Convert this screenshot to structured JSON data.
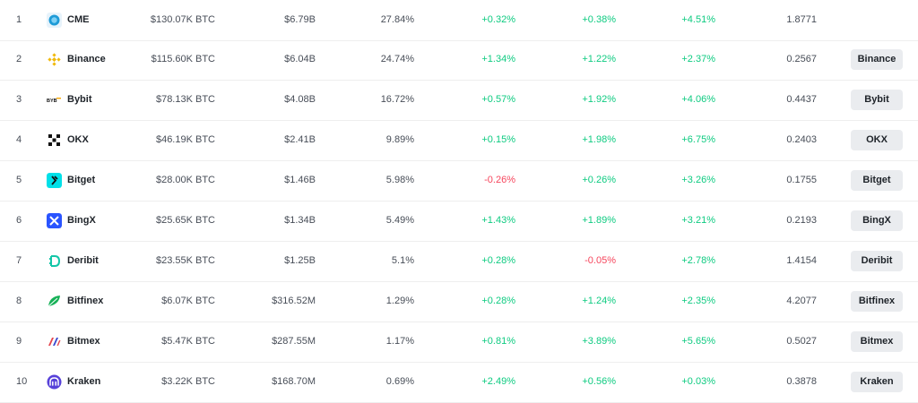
{
  "rows": [
    {
      "rank": "1",
      "name": "CME",
      "logo": "cme-logo-icon",
      "oi_btc": "$130.07K BTC",
      "oi_usd": "$6.79B",
      "share": "27.84%",
      "change1": "+0.32%",
      "change2": "+0.38%",
      "change3": "+4.51%",
      "ratio": "1.8771",
      "button": null
    },
    {
      "rank": "2",
      "name": "Binance",
      "logo": "binance-logo-icon",
      "oi_btc": "$115.60K BTC",
      "oi_usd": "$6.04B",
      "share": "24.74%",
      "change1": "+1.34%",
      "change2": "+1.22%",
      "change3": "+2.37%",
      "ratio": "0.2567",
      "button": "Binance"
    },
    {
      "rank": "3",
      "name": "Bybit",
      "logo": "bybit-logo-icon",
      "oi_btc": "$78.13K BTC",
      "oi_usd": "$4.08B",
      "share": "16.72%",
      "change1": "+0.57%",
      "change2": "+1.92%",
      "change3": "+4.06%",
      "ratio": "0.4437",
      "button": "Bybit"
    },
    {
      "rank": "4",
      "name": "OKX",
      "logo": "okx-logo-icon",
      "oi_btc": "$46.19K BTC",
      "oi_usd": "$2.41B",
      "share": "9.89%",
      "change1": "+0.15%",
      "change2": "+1.98%",
      "change3": "+6.75%",
      "ratio": "0.2403",
      "button": "OKX"
    },
    {
      "rank": "5",
      "name": "Bitget",
      "logo": "bitget-logo-icon",
      "oi_btc": "$28.00K BTC",
      "oi_usd": "$1.46B",
      "share": "5.98%",
      "change1": "-0.26%",
      "change2": "+0.26%",
      "change3": "+3.26%",
      "ratio": "0.1755",
      "button": "Bitget"
    },
    {
      "rank": "6",
      "name": "BingX",
      "logo": "bingx-logo-icon",
      "oi_btc": "$25.65K BTC",
      "oi_usd": "$1.34B",
      "share": "5.49%",
      "change1": "+1.43%",
      "change2": "+1.89%",
      "change3": "+3.21%",
      "ratio": "0.2193",
      "button": "BingX"
    },
    {
      "rank": "7",
      "name": "Deribit",
      "logo": "deribit-logo-icon",
      "oi_btc": "$23.55K BTC",
      "oi_usd": "$1.25B",
      "share": "5.1%",
      "change1": "+0.28%",
      "change2": "-0.05%",
      "change3": "+2.78%",
      "ratio": "1.4154",
      "button": "Deribit"
    },
    {
      "rank": "8",
      "name": "Bitfinex",
      "logo": "bitfinex-logo-icon",
      "oi_btc": "$6.07K BTC",
      "oi_usd": "$316.52M",
      "share": "1.29%",
      "change1": "+0.28%",
      "change2": "+1.24%",
      "change3": "+2.35%",
      "ratio": "4.2077",
      "button": "Bitfinex"
    },
    {
      "rank": "9",
      "name": "Bitmex",
      "logo": "bitmex-logo-icon",
      "oi_btc": "$5.47K BTC",
      "oi_usd": "$287.55M",
      "share": "1.17%",
      "change1": "+0.81%",
      "change2": "+3.89%",
      "change3": "+5.65%",
      "ratio": "0.5027",
      "button": "Bitmex"
    },
    {
      "rank": "10",
      "name": "Kraken",
      "logo": "kraken-logo-icon",
      "oi_btc": "$3.22K BTC",
      "oi_usd": "$168.70M",
      "share": "0.69%",
      "change1": "+2.49%",
      "change2": "+0.56%",
      "change3": "+0.03%",
      "ratio": "0.3878",
      "button": "Kraken"
    }
  ],
  "colors": {
    "up": "#0ecb81",
    "down": "#f6465d",
    "button_bg": "#eaecef"
  }
}
